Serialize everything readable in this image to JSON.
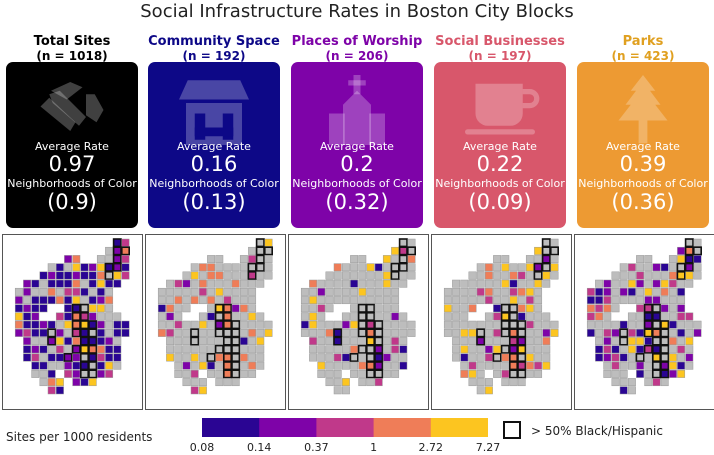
{
  "chart_data": {
    "type": "heatmap",
    "title": "Social Infrastructure Rates in Boston City Blocks",
    "panels": [
      {
        "name": "Total Sites",
        "n_label": "(n = 1018)",
        "avg_label": "Average Rate",
        "avg": "0.97",
        "noc_label": "Neighborhoods of Color",
        "noc": "(0.9)",
        "color": "#000000",
        "header_color": "#000000",
        "icon": "handshake-icon"
      },
      {
        "name": "Community Space",
        "n_label": "(n = 192)",
        "avg_label": "Average Rate",
        "avg": "0.16",
        "noc_label": "Neighborhoods of Color",
        "noc": "(0.13)",
        "color": "#0d0887",
        "header_color": "#0d0887",
        "icon": "community-building-icon"
      },
      {
        "name": "Places of Worship",
        "n_label": "(n = 206)",
        "avg_label": "Average Rate",
        "avg": "0.2",
        "noc_label": "Neighborhoods of Color",
        "noc": "(0.32)",
        "color": "#7e03a8",
        "header_color": "#7e03a8",
        "icon": "church-icon"
      },
      {
        "name": "Social Businesses",
        "n_label": "(n = 197)",
        "avg_label": "Average Rate",
        "avg": "0.22",
        "noc_label": "Neighborhoods of Color",
        "noc": "(0.09)",
        "color": "#d8576b",
        "header_color": "#d8576b",
        "icon": "coffee-cup-icon"
      },
      {
        "name": "Parks",
        "n_label": "(n = 423)",
        "avg_label": "Average Rate",
        "avg": "0.39",
        "noc_label": "Neighborhoods of Color",
        "noc": "(0.36)",
        "color": "#ed9a33",
        "header_color": "#e0a020",
        "icon": "tree-icon"
      }
    ],
    "legend": {
      "title": "Sites per 1000 residents",
      "ticks": [
        "0.08",
        "0.14",
        "0.37",
        "1",
        "2.72",
        "7.27"
      ],
      "colors": [
        "#2a0593",
        "#7e03a8",
        "#c0398a",
        "#ef7d58",
        "#fcc520"
      ],
      "key_label": "> 50% Black/Hispanic"
    },
    "missing_color": "#bdbdbd",
    "highlight_border": "#111111"
  }
}
